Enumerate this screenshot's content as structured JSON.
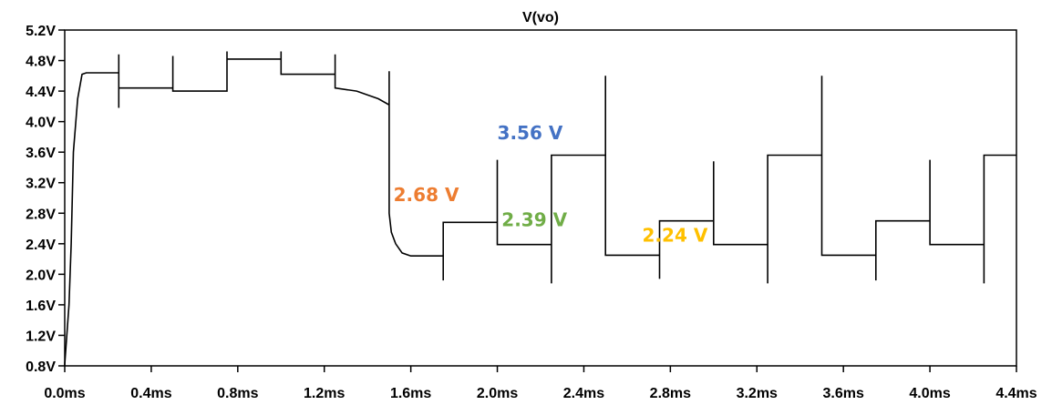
{
  "chart_data": {
    "type": "line",
    "title": "V(vo)",
    "xlabel": "",
    "ylabel": "",
    "xlim": [
      0.0,
      4.4
    ],
    "ylim": [
      0.8,
      5.2
    ],
    "x_ticks": [
      "0.0ms",
      "0.4ms",
      "0.8ms",
      "1.2ms",
      "1.6ms",
      "2.0ms",
      "2.4ms",
      "2.8ms",
      "3.2ms",
      "3.6ms",
      "4.0ms",
      "4.4ms"
    ],
    "y_ticks": [
      "0.8V",
      "1.2V",
      "1.6V",
      "2.0V",
      "2.4V",
      "2.8V",
      "3.2V",
      "3.6V",
      "4.0V",
      "4.4V",
      "4.8V",
      "5.2V"
    ],
    "grid": false,
    "series": [
      {
        "x": [
          0.0,
          0.0,
          0.02,
          0.03,
          0.04,
          0.06,
          0.08,
          0.1,
          0.25,
          0.25,
          0.25,
          0.25,
          0.25,
          0.5,
          0.5,
          0.5,
          0.5,
          0.75,
          0.75,
          0.75,
          0.75,
          1.0,
          1.0,
          1.0,
          1.0,
          1.25,
          1.25,
          1.25,
          1.25,
          1.35,
          1.45,
          1.5,
          1.5,
          1.5,
          1.51,
          1.53,
          1.56,
          1.6,
          1.75,
          1.75,
          1.75,
          1.75,
          2.0,
          2.0,
          2.0,
          2.0,
          2.25,
          2.25,
          2.25,
          2.25,
          2.5,
          2.5,
          2.5,
          2.5,
          2.75,
          2.75,
          2.75,
          2.75,
          3.0,
          3.0,
          3.0,
          3.0,
          3.25,
          3.25,
          3.25,
          3.25,
          3.5,
          3.5,
          3.5,
          3.5,
          3.75,
          3.75,
          3.75,
          3.75,
          4.0,
          4.0,
          4.0,
          4.0,
          4.25,
          4.25,
          4.25,
          4.25,
          4.4
        ],
        "y": [
          0.8,
          0.82,
          1.6,
          2.4,
          3.6,
          4.3,
          4.62,
          4.64,
          4.64,
          4.88,
          4.18,
          4.44,
          4.44,
          4.44,
          4.86,
          4.4,
          4.4,
          4.4,
          4.92,
          4.82,
          4.82,
          4.82,
          4.92,
          4.62,
          4.62,
          4.62,
          4.88,
          4.44,
          4.44,
          4.4,
          4.3,
          4.22,
          4.66,
          2.8,
          2.55,
          2.4,
          2.28,
          2.24,
          2.24,
          1.92,
          2.68,
          2.68,
          2.68,
          3.5,
          2.39,
          2.39,
          2.39,
          1.88,
          3.56,
          3.56,
          3.56,
          4.6,
          2.25,
          2.25,
          2.25,
          1.94,
          2.7,
          2.7,
          2.7,
          3.48,
          2.39,
          2.39,
          2.39,
          1.88,
          3.56,
          3.56,
          3.56,
          4.6,
          2.25,
          2.25,
          2.25,
          1.92,
          2.7,
          2.7,
          2.7,
          3.5,
          2.39,
          2.39,
          2.39,
          1.88,
          3.56,
          3.56,
          3.56
        ]
      }
    ],
    "annotations": [
      {
        "text": "3.56 V",
        "color": "#4472C4",
        "x": 2.0,
        "y": 3.77
      },
      {
        "text": "2.68 V",
        "color": "#ED7D31",
        "x": 1.52,
        "y": 2.96
      },
      {
        "text": "2.39 V",
        "color": "#70AD47",
        "x": 2.02,
        "y": 2.63
      },
      {
        "text": "2.24 V",
        "color": "#FFC000",
        "x": 2.67,
        "y": 2.43
      }
    ]
  }
}
